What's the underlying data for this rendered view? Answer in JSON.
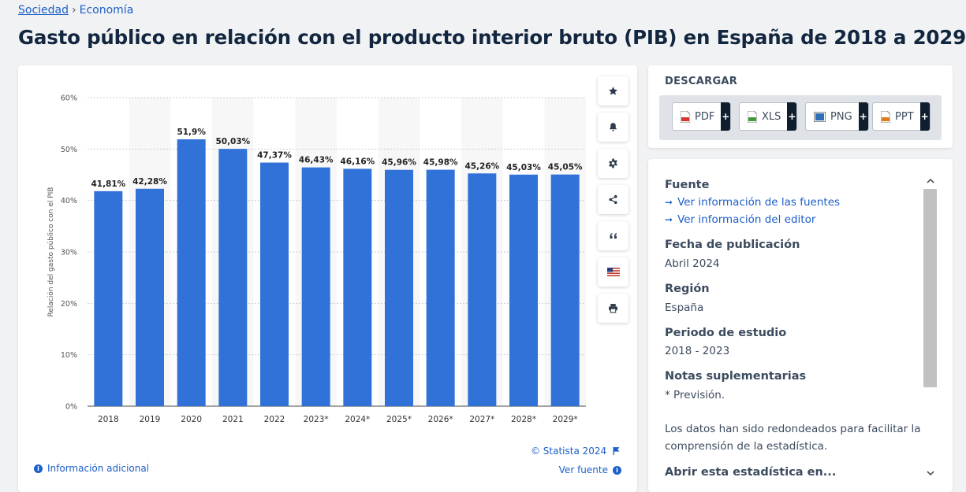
{
  "breadcrumb": {
    "root": "Sociedad",
    "separator": "›",
    "current": "Economía"
  },
  "page": {
    "title": "Gasto público en relación con el producto interior bruto (PIB) en España de 2018 a 2029"
  },
  "chart_data": {
    "type": "bar",
    "categories": [
      "2018",
      "2019",
      "2020",
      "2021",
      "2022",
      "2023*",
      "2024*",
      "2025*",
      "2026*",
      "2027*",
      "2028*",
      "2029*"
    ],
    "values": [
      41.81,
      42.28,
      51.9,
      50.03,
      47.37,
      46.43,
      46.16,
      45.96,
      45.98,
      45.26,
      45.03,
      45.05
    ],
    "value_labels": [
      "41,81%",
      "42,28%",
      "51,9%",
      "50,03%",
      "47,37%",
      "46,43%",
      "46,16%",
      "45,96%",
      "45,98%",
      "45,26%",
      "45,03%",
      "45,05%"
    ],
    "ylabel": "Relación del gasto público con el PIB",
    "yticks": [
      "0%",
      "10%",
      "20%",
      "30%",
      "40%",
      "50%",
      "60%"
    ],
    "ylim": [
      0,
      60
    ],
    "grid": true,
    "bar_color": "#3172d8"
  },
  "chart_footer": {
    "copyright": "© Statista 2024",
    "info_link": "Información adicional",
    "source_link": "Ver fuente"
  },
  "toolbar": {
    "icons": [
      "star-icon",
      "bell-icon",
      "gear-icon",
      "share-icon",
      "quote-icon",
      "flag-icon",
      "print-icon"
    ]
  },
  "download": {
    "title": "DESCARGAR",
    "buttons": [
      {
        "label": "PDF",
        "icon": "pdf-file-icon",
        "color": "#d9352f"
      },
      {
        "label": "XLS",
        "icon": "xls-file-icon",
        "color": "#3f9c35"
      },
      {
        "label": "PNG",
        "icon": "png-file-icon",
        "color": "#2f6fb5"
      },
      {
        "label": "PPT",
        "icon": "ppt-file-icon",
        "color": "#e07a1f"
      }
    ],
    "plus": "+"
  },
  "meta": {
    "source_heading": "Fuente",
    "source_links": [
      "Ver información de las fuentes",
      "Ver información del editor"
    ],
    "publication_heading": "Fecha de publicación",
    "publication_value": "Abril 2024",
    "region_heading": "Región",
    "region_value": "España",
    "period_heading": "Periodo de estudio",
    "period_value": "2018 - 2023",
    "notes_heading": "Notas suplementarias",
    "notes_line1": "* Previsión.",
    "notes_line2": "Los datos han sido redondeados para facilitar la",
    "notes_line3": "comprensión de la estadística.",
    "open_heading": "Abrir esta estadística en..."
  }
}
